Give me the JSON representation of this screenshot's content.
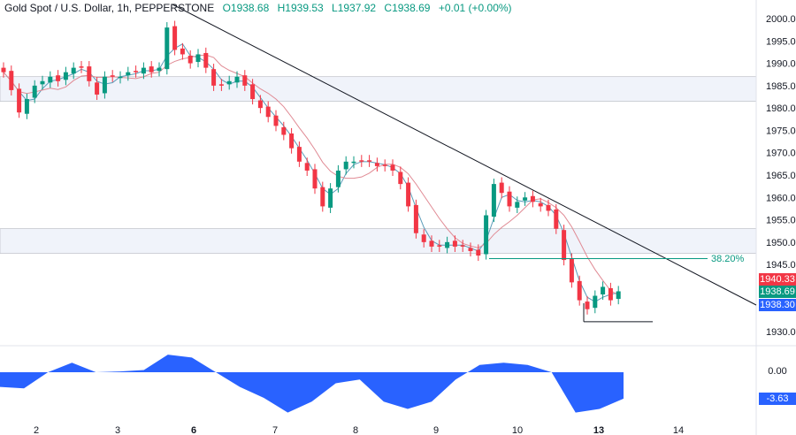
{
  "header": {
    "symbol": "Gold Spot / U.S. Dollar, 1h, PEPPERSTONE",
    "open": "O1938.68",
    "high": "H1939.53",
    "low": "L1937.92",
    "close": "C1938.69",
    "change": "+0.01 (+0.00%)"
  },
  "labels": {
    "ma_slow": "1940.33",
    "last_price": "1938.69",
    "ma_fast": "1938.30",
    "osc_zero": "0.00",
    "osc_value": "-3.63",
    "fib": "38.20%"
  },
  "colors": {
    "up": "#089981",
    "down": "#f23645",
    "ma_fast": "#5b9cb8",
    "ma_slow": "#e08a94",
    "osc": "#2962ff",
    "zone": "#f0f3fa"
  },
  "chart_data": {
    "type": "candlestick",
    "title": "Gold Spot / U.S. Dollar, 1h",
    "y_ticks": [
      2000,
      1995,
      1990,
      1985,
      1980,
      1975,
      1970,
      1965,
      1960,
      1955,
      1950,
      1945,
      1930
    ],
    "x_ticks": [
      "2",
      "3",
      "6",
      "7",
      "8",
      "9",
      "10",
      "13",
      "14"
    ],
    "closes": [
      1988,
      1984,
      1979,
      1982,
      1985,
      1986,
      1987,
      1986,
      1988,
      1989,
      1989,
      1986,
      1983,
      1987,
      1987,
      1987,
      1988,
      1988,
      1989,
      1988,
      1989,
      1998,
      1993,
      1992,
      1990,
      1992,
      1989,
      1985,
      1985,
      1986,
      1987,
      1985,
      1982,
      1980,
      1978,
      1976,
      1974,
      1971,
      1968,
      1966,
      1962,
      1958,
      1962,
      1966,
      1968,
      1968,
      1968,
      1968,
      1967,
      1967,
      1966,
      1963,
      1958,
      1952,
      1950,
      1949,
      1949,
      1950,
      1949,
      1949,
      1948,
      1947,
      1956,
      1963,
      1961,
      1958,
      1959,
      1960,
      1959,
      1958,
      1957,
      1953,
      1946,
      1941,
      1937,
      1935,
      1938,
      1940,
      1937,
      1939
    ],
    "resistance_zones": [
      [
        1981.5,
        1987
      ],
      [
        1947.5,
        1953
      ]
    ],
    "fib_level": {
      "label": "38.20%",
      "price": 1946.3
    },
    "support": 1932.2,
    "oscillator": {
      "zero": 0,
      "last": -3.63,
      "shape": [
        -2,
        -2.2,
        0,
        1.3,
        0,
        0.1,
        0.3,
        2.4,
        2,
        0,
        -2,
        -3.5,
        -5.5,
        -4,
        -1.5,
        -1,
        -4,
        -5,
        -4,
        -1,
        1,
        1.3,
        1,
        0,
        -5.5,
        -5,
        -3.6
      ]
    }
  }
}
